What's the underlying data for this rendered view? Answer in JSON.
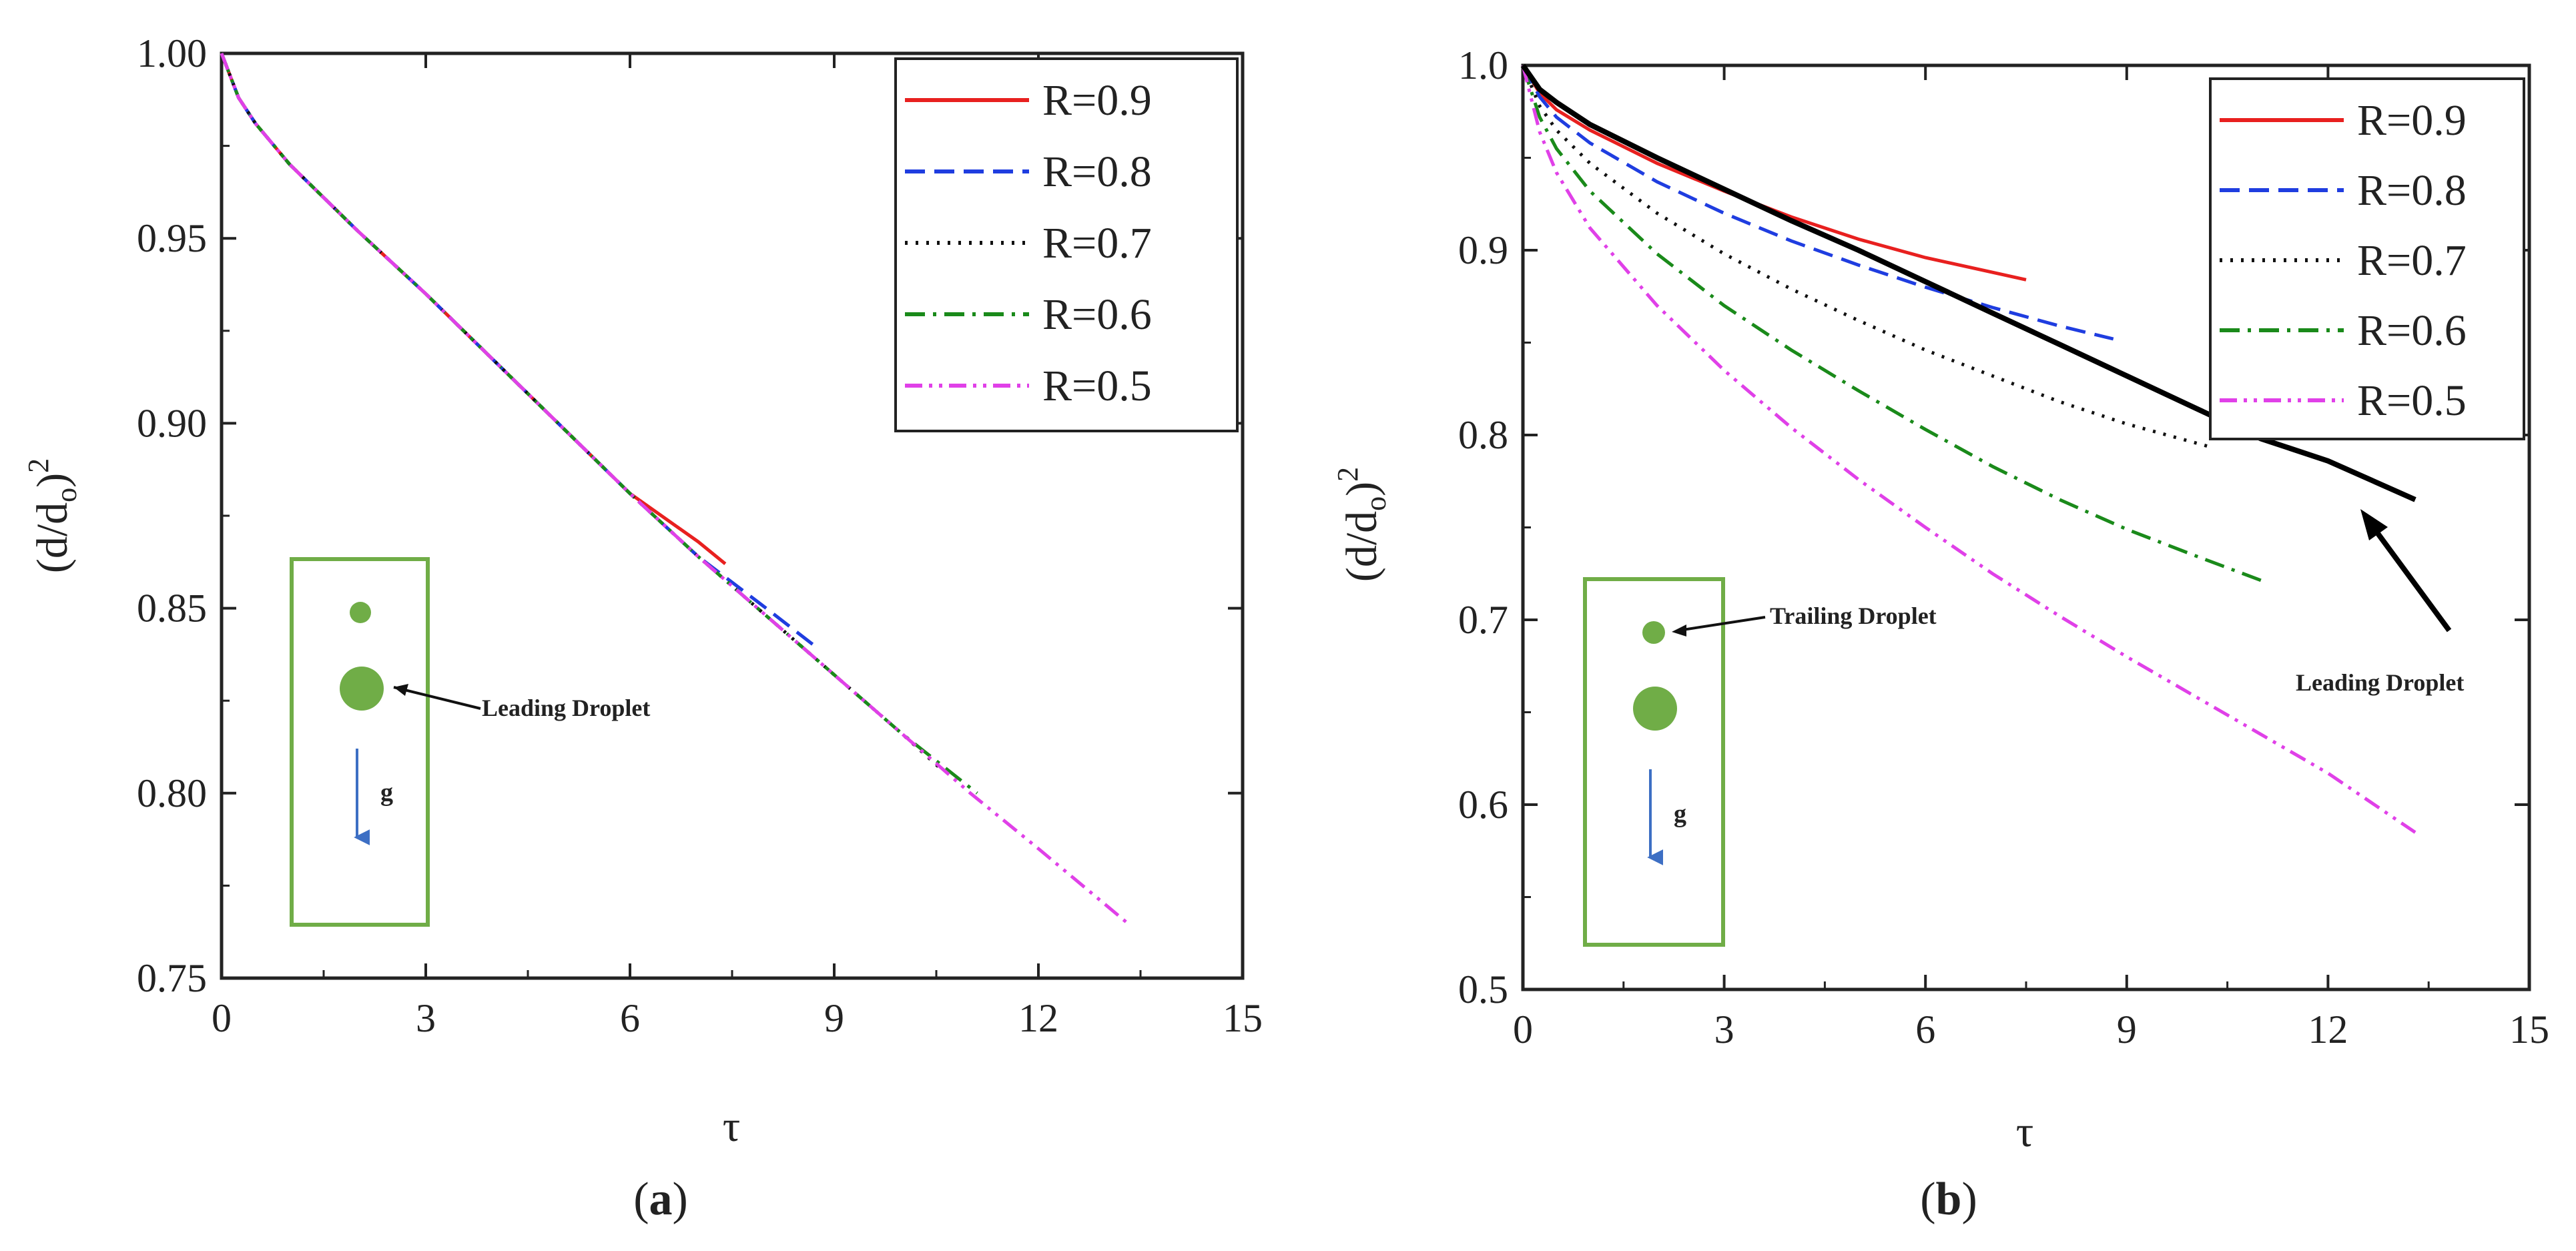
{
  "chart_data": [
    {
      "type": "line",
      "panel_label": "a",
      "xlabel": "τ",
      "ylabel": "(d/d",
      "ylabel_sub": "o",
      "ylabel_tail": ")",
      "ylabel_sup": "2",
      "xlim": [
        0,
        15
      ],
      "ylim": [
        0.75,
        1.0
      ],
      "x_ticks": [
        0,
        3,
        6,
        9,
        12,
        15
      ],
      "x_tick_labels": [
        "0",
        "3",
        "6",
        "9",
        "12",
        "15"
      ],
      "y_ticks": [
        0.75,
        0.8,
        0.85,
        0.9,
        0.95,
        1.0
      ],
      "y_tick_labels": [
        "0.75",
        "0.80",
        "0.85",
        "0.90",
        "0.95",
        "1.00"
      ],
      "legend_position": "top-right",
      "series": [
        {
          "name": "R=0.9",
          "color": "#e8201f",
          "dash": "solid",
          "x": [
            0,
            0.25,
            0.5,
            1,
            2,
            3,
            4,
            5,
            6,
            7,
            7.4
          ],
          "y": [
            1.0,
            0.988,
            0.981,
            0.97,
            0.952,
            0.935,
            0.917,
            0.899,
            0.881,
            0.868,
            0.862
          ]
        },
        {
          "name": "R=0.8",
          "color": "#1f3de0",
          "dash": "long-dash",
          "x": [
            0,
            0.25,
            0.5,
            1,
            2,
            3,
            4,
            5,
            6,
            7,
            8,
            8.7
          ],
          "y": [
            1.0,
            0.988,
            0.981,
            0.97,
            0.952,
            0.935,
            0.917,
            0.899,
            0.881,
            0.864,
            0.85,
            0.84
          ]
        },
        {
          "name": "R=0.7",
          "color": "#111111",
          "dash": "dotted",
          "x": [
            0,
            0.25,
            0.5,
            1,
            2,
            3,
            4,
            5,
            6,
            7,
            8,
            9,
            10,
            10.6
          ],
          "y": [
            1.0,
            0.988,
            0.981,
            0.97,
            0.952,
            0.935,
            0.917,
            0.899,
            0.881,
            0.864,
            0.848,
            0.832,
            0.816,
            0.806
          ]
        },
        {
          "name": "R=0.6",
          "color": "#1a8a1a",
          "dash": "dash-dot",
          "x": [
            0,
            0.25,
            0.5,
            1,
            2,
            3,
            4,
            5,
            6,
            7,
            8,
            9,
            10,
            11.1
          ],
          "y": [
            1.0,
            0.988,
            0.981,
            0.97,
            0.952,
            0.935,
            0.917,
            0.899,
            0.881,
            0.864,
            0.848,
            0.832,
            0.816,
            0.8
          ]
        },
        {
          "name": "R=0.5",
          "color": "#e040e8",
          "dash": "dash-dot-dot",
          "x": [
            0,
            0.25,
            0.5,
            1,
            2,
            3,
            4,
            5,
            6,
            7,
            8,
            9,
            10,
            11,
            12,
            13.3
          ],
          "y": [
            1.0,
            0.988,
            0.981,
            0.97,
            0.952,
            0.935,
            0.917,
            0.899,
            0.881,
            0.864,
            0.848,
            0.832,
            0.816,
            0.8,
            0.785,
            0.765
          ]
        }
      ],
      "annotations": [
        {
          "text": "Leading Droplet"
        },
        {
          "text": "g"
        }
      ]
    },
    {
      "type": "line",
      "panel_label": "b",
      "xlabel": "τ",
      "ylabel": "(d/d",
      "ylabel_sub": "o",
      "ylabel_tail": ")",
      "ylabel_sup": "2",
      "xlim": [
        0,
        15
      ],
      "ylim": [
        0.5,
        1.0
      ],
      "x_ticks": [
        0,
        3,
        6,
        9,
        12,
        15
      ],
      "x_tick_labels": [
        "0",
        "3",
        "6",
        "9",
        "12",
        "15"
      ],
      "y_ticks": [
        0.5,
        0.6,
        0.7,
        0.8,
        0.9,
        1.0
      ],
      "y_tick_labels": [
        "0.5",
        "0.6",
        "0.7",
        "0.8",
        "0.9",
        "1.0"
      ],
      "legend_position": "top-right",
      "series": [
        {
          "name": "R=0.9",
          "color": "#e8201f",
          "dash": "solid",
          "x": [
            0,
            0.25,
            0.5,
            1,
            2,
            3,
            4,
            5,
            6,
            7,
            7.5
          ],
          "y": [
            1.0,
            0.985,
            0.976,
            0.965,
            0.947,
            0.932,
            0.918,
            0.906,
            0.896,
            0.888,
            0.884
          ]
        },
        {
          "name": "R=0.8",
          "color": "#1f3de0",
          "dash": "long-dash",
          "x": [
            0,
            0.25,
            0.5,
            1,
            2,
            3,
            4,
            5,
            6,
            7,
            8,
            8.8
          ],
          "y": [
            1.0,
            0.983,
            0.972,
            0.958,
            0.937,
            0.92,
            0.905,
            0.892,
            0.88,
            0.869,
            0.859,
            0.852
          ]
        },
        {
          "name": "R=0.7",
          "color": "#111111",
          "dash": "dotted",
          "x": [
            0,
            0.25,
            0.5,
            1,
            2,
            3,
            4,
            5,
            6,
            7,
            8,
            9,
            10.2
          ],
          "y": [
            1.0,
            0.978,
            0.965,
            0.947,
            0.92,
            0.898,
            0.879,
            0.862,
            0.846,
            0.832,
            0.818,
            0.806,
            0.794
          ]
        },
        {
          "name": "R=0.6",
          "color": "#1a8a1a",
          "dash": "dash-dot",
          "x": [
            0,
            0.25,
            0.5,
            1,
            2,
            3,
            4,
            5,
            6,
            7,
            8,
            9,
            10,
            11.1
          ],
          "y": [
            1.0,
            0.972,
            0.955,
            0.932,
            0.898,
            0.87,
            0.846,
            0.824,
            0.803,
            0.783,
            0.765,
            0.749,
            0.735,
            0.72
          ]
        },
        {
          "name": "R=0.5",
          "color": "#e040e8",
          "dash": "dash-dot-dot",
          "x": [
            0,
            0.25,
            0.5,
            1,
            2,
            3,
            4,
            5,
            6,
            7,
            8,
            9,
            10,
            11,
            12,
            13.3
          ],
          "y": [
            1.0,
            0.964,
            0.942,
            0.912,
            0.87,
            0.835,
            0.804,
            0.776,
            0.75,
            0.725,
            0.702,
            0.68,
            0.659,
            0.638,
            0.617,
            0.585
          ]
        },
        {
          "name": "Leading",
          "color": "#000000",
          "dash": "solid",
          "legend": false,
          "x": [
            0,
            0.25,
            0.5,
            1,
            2,
            3,
            4,
            5,
            6,
            7,
            8,
            9,
            10,
            11,
            12,
            13.3
          ],
          "y": [
            1.0,
            0.987,
            0.98,
            0.968,
            0.95,
            0.933,
            0.916,
            0.9,
            0.883,
            0.866,
            0.849,
            0.832,
            0.815,
            0.798,
            0.786,
            0.765
          ]
        }
      ],
      "annotations": [
        {
          "text": "Trailing Droplet"
        },
        {
          "text": "Leading Droplet"
        },
        {
          "text": "g"
        }
      ]
    }
  ]
}
